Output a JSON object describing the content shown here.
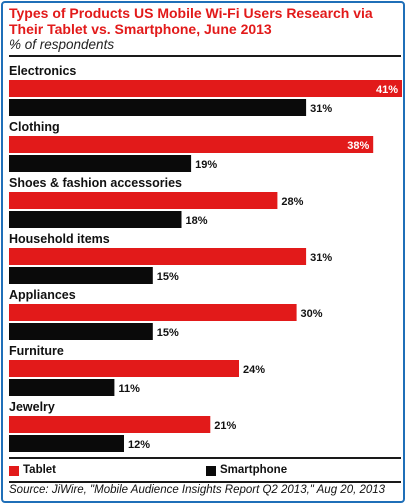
{
  "header": {
    "title": "Types of Products US Mobile Wi-Fi Users Research via Their Tablet vs. Smartphone, June 2013",
    "subtitle": "% of respondents"
  },
  "footer": {
    "source": "Source: JiWire, \"Mobile Audience Insights Report Q2 2013,\" Aug 20, 2013"
  },
  "colors": {
    "tablet": "#e21a1a",
    "smartphone": "#0a0a0a",
    "accent": "#e21a1a",
    "frame": "#1f6fb8"
  },
  "chart_data": {
    "type": "bar",
    "orientation": "horizontal",
    "title": "Types of Products US Mobile Wi-Fi Users Research via Their Tablet vs. Smartphone, June 2013",
    "subtitle": "% of respondents",
    "categories": [
      "Electronics",
      "Clothing",
      "Shoes & fashion accessories",
      "Household items",
      "Appliances",
      "Furniture",
      "Jewelry"
    ],
    "series": [
      {
        "name": "Tablet",
        "values": [
          41,
          38,
          28,
          31,
          30,
          24,
          21
        ],
        "labels": [
          "41%",
          "38%",
          "28%",
          "31%",
          "30%",
          "24%",
          "21%"
        ]
      },
      {
        "name": "Smartphone",
        "values": [
          31,
          19,
          18,
          15,
          15,
          11,
          12
        ],
        "labels": [
          "31%",
          "19%",
          "18%",
          "15%",
          "15%",
          "11%",
          "12%"
        ]
      }
    ],
    "xlim": [
      0,
      41
    ],
    "grid": false,
    "legend": "bottom"
  }
}
